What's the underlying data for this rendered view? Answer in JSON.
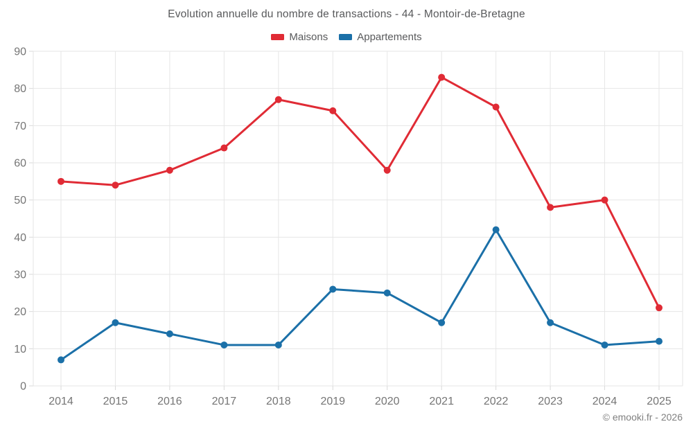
{
  "title": "Evolution annuelle du nombre de transactions - 44 - Montoir-de-Bretagne",
  "footer": "© emooki.fr - 2026",
  "colors": {
    "maisons": "#e02b35",
    "appartements": "#1b70a8",
    "grid": "#e6e6e6",
    "tick": "#d9d9d9",
    "axis_text": "#757575",
    "title_text": "#58595b"
  },
  "chart_data": {
    "type": "line",
    "title": "Evolution annuelle du nombre de transactions - 44 - Montoir-de-Bretagne",
    "categories": [
      "2014",
      "2015",
      "2016",
      "2017",
      "2018",
      "2019",
      "2020",
      "2021",
      "2022",
      "2023",
      "2024",
      "2025"
    ],
    "series": [
      {
        "name": "Maisons",
        "color": "#e02b35",
        "values": [
          55,
          54,
          58,
          64,
          77,
          74,
          58,
          83,
          75,
          48,
          50,
          21
        ]
      },
      {
        "name": "Appartements",
        "color": "#1b70a8",
        "values": [
          7,
          17,
          14,
          11,
          11,
          26,
          25,
          17,
          42,
          17,
          11,
          12
        ]
      }
    ],
    "xlabel": "",
    "ylabel": "",
    "ylim": [
      0,
      90
    ],
    "ytick_step": 10,
    "grid": true,
    "legend_position": "top",
    "marker": "circle",
    "annotations": [
      "© emooki.fr - 2026"
    ]
  }
}
